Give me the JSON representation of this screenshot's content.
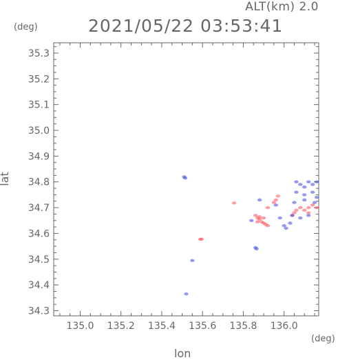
{
  "header": {
    "alt_label": "ALT(km) 2.0",
    "timestamp": "2021/05/22 03:53:41",
    "unit_top": "(deg)",
    "unit_right": "(deg)"
  },
  "colors": {
    "approach": "#ff4d55",
    "recede": "#3b47e0",
    "axis": "#666666"
  },
  "chart_data": {
    "type": "scatter",
    "title": "2021/05/22 03:53:41",
    "subtitle": "ALT(km) 2.0",
    "xlabel": "lon",
    "ylabel": "lat",
    "xlim": [
      134.87,
      136.17
    ],
    "ylim": [
      34.28,
      35.34
    ],
    "x_ticks": [
      "135.0",
      "135.2",
      "135.4",
      "135.6",
      "135.8",
      "136.0"
    ],
    "y_ticks": [
      "34.3",
      "34.4",
      "34.5",
      "34.6",
      "34.7",
      "34.8",
      "34.9",
      "35.0",
      "35.1",
      "35.2",
      "35.3"
    ],
    "grid": false,
    "series": [
      {
        "color": "#ff4d55",
        "points": [
          [
            135.59,
            34.577
          ],
          [
            135.595,
            34.578
          ],
          [
            135.755,
            34.718
          ],
          [
            135.86,
            34.67
          ],
          [
            135.87,
            34.66
          ],
          [
            135.88,
            34.655
          ],
          [
            135.89,
            34.645
          ],
          [
            135.9,
            34.64
          ],
          [
            135.91,
            34.635
          ],
          [
            135.92,
            34.63
          ],
          [
            135.88,
            34.665
          ],
          [
            135.9,
            34.66
          ],
          [
            135.87,
            34.645
          ],
          [
            135.95,
            34.72
          ],
          [
            135.97,
            34.745
          ],
          [
            135.96,
            34.73
          ],
          [
            135.92,
            34.7
          ],
          [
            136.04,
            34.67
          ],
          [
            136.06,
            34.69
          ],
          [
            136.08,
            34.7
          ],
          [
            136.1,
            34.69
          ],
          [
            136.12,
            34.7
          ],
          [
            136.14,
            34.71
          ],
          [
            136.16,
            34.7
          ],
          [
            136.05,
            34.68
          ],
          [
            136.12,
            34.68
          ]
        ]
      },
      {
        "color": "#3b47e0",
        "points": [
          [
            135.51,
            34.82
          ],
          [
            135.515,
            34.815
          ],
          [
            135.52,
            34.365
          ],
          [
            135.55,
            34.495
          ],
          [
            135.86,
            34.545
          ],
          [
            135.865,
            34.54
          ],
          [
            135.84,
            34.65
          ],
          [
            135.88,
            34.73
          ],
          [
            135.96,
            34.71
          ],
          [
            135.98,
            34.66
          ],
          [
            136.0,
            34.63
          ],
          [
            136.01,
            34.62
          ],
          [
            136.06,
            34.8
          ],
          [
            136.08,
            34.79
          ],
          [
            136.1,
            34.78
          ],
          [
            136.12,
            34.8
          ],
          [
            136.14,
            34.79
          ],
          [
            136.16,
            34.8
          ],
          [
            136.06,
            34.76
          ],
          [
            136.1,
            34.75
          ],
          [
            136.14,
            34.76
          ],
          [
            136.16,
            34.74
          ],
          [
            136.05,
            34.72
          ],
          [
            136.1,
            34.73
          ],
          [
            136.15,
            34.72
          ],
          [
            136.04,
            34.67
          ],
          [
            136.08,
            34.66
          ],
          [
            136.12,
            34.67
          ],
          [
            136.03,
            34.64
          ]
        ]
      }
    ]
  }
}
